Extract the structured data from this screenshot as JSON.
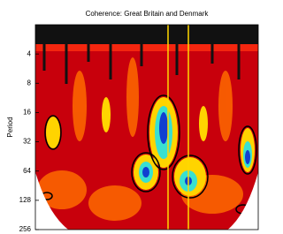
{
  "chart_data": {
    "type": "heatmap",
    "title": "Coherence: Great Britain and Denmark",
    "ylabel": "Period",
    "ylim": [
      2,
      256
    ],
    "yticks": [
      4,
      8,
      16,
      32,
      64,
      128,
      256
    ],
    "ylog": true,
    "y_inverted": true
  }
}
